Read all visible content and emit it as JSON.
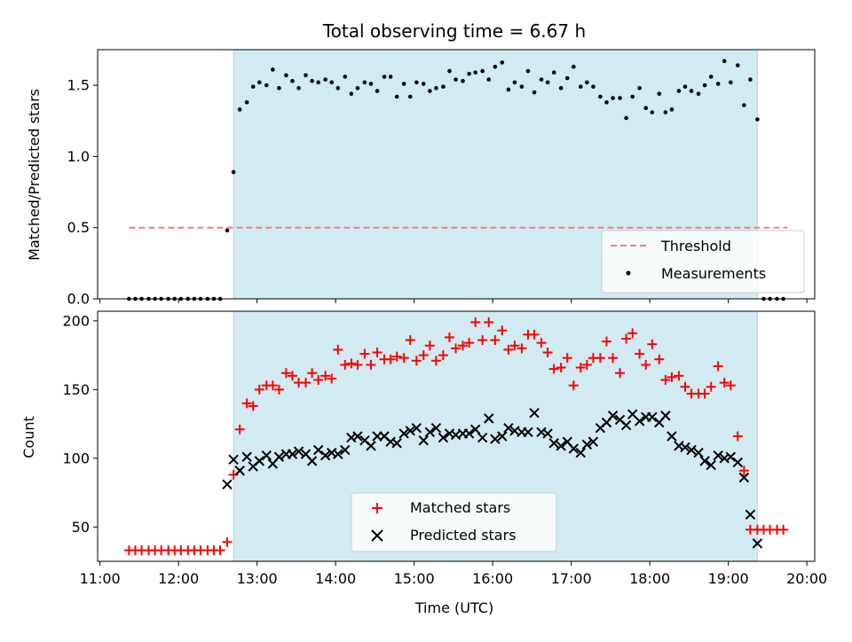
{
  "title": "Total observing time = 6.67 h",
  "colors": {
    "shade": "#add8e6",
    "threshold": "#f08080",
    "measurement": "#000000",
    "matched": "#ff0000",
    "predicted": "#000000"
  },
  "chart_data": [
    {
      "type": "scatter",
      "panel": "top",
      "ylabel": "Matched/Predicted stars",
      "xlim": [
        10.97,
        20.1
      ],
      "ylim": [
        0,
        1.75
      ],
      "yticks": [
        0.0,
        0.5,
        1.0,
        1.5
      ],
      "ytick_labels": [
        "0.0",
        "0.5",
        "1.0",
        "1.5"
      ],
      "shaded_span": [
        12.7,
        19.37
      ],
      "legend_position": "lower right",
      "legend": [
        "Threshold",
        "Measurements"
      ],
      "threshold": {
        "name": "Threshold",
        "y": 0.5,
        "x": [
          11.37,
          19.75
        ]
      },
      "series": [
        {
          "name": "Measurements",
          "x": [
            11.37,
            11.45,
            11.53,
            11.62,
            11.7,
            11.78,
            11.87,
            11.95,
            12.03,
            12.12,
            12.2,
            12.28,
            12.37,
            12.45,
            12.53,
            12.62,
            12.7,
            12.78,
            12.87,
            12.95,
            13.03,
            13.12,
            13.2,
            13.28,
            13.37,
            13.45,
            13.53,
            13.62,
            13.7,
            13.78,
            13.87,
            13.95,
            14.03,
            14.12,
            14.2,
            14.28,
            14.37,
            14.45,
            14.53,
            14.62,
            14.7,
            14.78,
            14.87,
            14.95,
            15.03,
            15.12,
            15.2,
            15.28,
            15.37,
            15.45,
            15.53,
            15.62,
            15.7,
            15.78,
            15.87,
            15.95,
            16.03,
            16.12,
            16.2,
            16.28,
            16.37,
            16.45,
            16.53,
            16.62,
            16.7,
            16.78,
            16.87,
            16.95,
            17.03,
            17.12,
            17.2,
            17.28,
            17.37,
            17.45,
            17.53,
            17.62,
            17.7,
            17.78,
            17.87,
            17.95,
            18.03,
            18.12,
            18.2,
            18.28,
            18.37,
            18.45,
            18.53,
            18.62,
            18.7,
            18.78,
            18.87,
            18.95,
            19.03,
            19.12,
            19.2,
            19.28,
            19.37,
            19.45,
            19.53,
            19.62,
            19.7
          ],
          "y": [
            0,
            0,
            0,
            0,
            0,
            0,
            0,
            0,
            0,
            0,
            0,
            0,
            0,
            0,
            0,
            0.48,
            0.89,
            1.33,
            1.38,
            1.49,
            1.52,
            1.5,
            1.61,
            1.48,
            1.57,
            1.53,
            1.48,
            1.57,
            1.53,
            1.52,
            1.54,
            1.52,
            1.48,
            1.56,
            1.44,
            1.48,
            1.52,
            1.51,
            1.46,
            1.56,
            1.56,
            1.42,
            1.51,
            1.42,
            1.52,
            1.51,
            1.46,
            1.48,
            1.49,
            1.6,
            1.54,
            1.53,
            1.58,
            1.59,
            1.6,
            1.54,
            1.63,
            1.66,
            1.47,
            1.52,
            1.49,
            1.6,
            1.45,
            1.54,
            1.52,
            1.59,
            1.48,
            1.55,
            1.63,
            1.49,
            1.52,
            1.49,
            1.42,
            1.38,
            1.41,
            1.41,
            1.27,
            1.42,
            1.48,
            1.34,
            1.31,
            1.44,
            1.31,
            1.33,
            1.46,
            1.49,
            1.46,
            1.44,
            1.5,
            1.56,
            1.51,
            1.67,
            1.52,
            1.64,
            1.36,
            1.54,
            1.26,
            0,
            0,
            0,
            0
          ]
        }
      ]
    },
    {
      "type": "scatter",
      "panel": "bottom",
      "xlabel": "Time (UTC)",
      "ylabel": "Count",
      "xlim": [
        10.97,
        20.1
      ],
      "ylim": [
        25,
        207
      ],
      "yticks": [
        50,
        100,
        150,
        200
      ],
      "ytick_labels": [
        "50",
        "100",
        "150",
        "200"
      ],
      "xticks": [
        11,
        12,
        13,
        14,
        15,
        16,
        17,
        18,
        19,
        20
      ],
      "xtick_labels": [
        "11:00",
        "12:00",
        "13:00",
        "14:00",
        "15:00",
        "16:00",
        "17:00",
        "18:00",
        "19:00",
        "20:00"
      ],
      "shaded_span": [
        12.7,
        19.37
      ],
      "legend_position": "lower center",
      "legend": [
        "Matched stars",
        "Predicted stars"
      ],
      "series": [
        {
          "name": "Matched stars",
          "marker": "+",
          "x": [
            11.37,
            11.45,
            11.53,
            11.62,
            11.7,
            11.78,
            11.87,
            11.95,
            12.03,
            12.12,
            12.2,
            12.28,
            12.37,
            12.45,
            12.53,
            12.62,
            12.7,
            12.78,
            12.87,
            12.95,
            13.03,
            13.12,
            13.2,
            13.28,
            13.37,
            13.45,
            13.53,
            13.62,
            13.7,
            13.78,
            13.87,
            13.95,
            14.03,
            14.12,
            14.2,
            14.28,
            14.37,
            14.45,
            14.53,
            14.62,
            14.7,
            14.78,
            14.87,
            14.95,
            15.03,
            15.12,
            15.2,
            15.28,
            15.37,
            15.45,
            15.53,
            15.62,
            15.7,
            15.78,
            15.87,
            15.95,
            16.03,
            16.12,
            16.2,
            16.28,
            16.37,
            16.45,
            16.53,
            16.62,
            16.7,
            16.78,
            16.87,
            16.95,
            17.03,
            17.12,
            17.2,
            17.28,
            17.37,
            17.45,
            17.53,
            17.62,
            17.7,
            17.78,
            17.87,
            17.95,
            18.03,
            18.12,
            18.2,
            18.28,
            18.37,
            18.45,
            18.53,
            18.62,
            18.7,
            18.78,
            18.87,
            18.95,
            19.03,
            19.12,
            19.2,
            19.28,
            19.37,
            19.45,
            19.53,
            19.62,
            19.7
          ],
          "y": [
            33,
            33,
            33,
            33,
            33,
            33,
            33,
            33,
            33,
            33,
            33,
            33,
            33,
            33,
            33,
            39,
            88,
            121,
            140,
            138,
            150,
            153,
            153,
            150,
            162,
            160,
            155,
            155,
            162,
            157,
            160,
            158,
            179,
            168,
            169,
            168,
            176,
            168,
            177,
            172,
            172,
            174,
            173,
            186,
            171,
            175,
            182,
            171,
            175,
            188,
            180,
            182,
            184,
            199,
            186,
            199,
            186,
            193,
            179,
            182,
            180,
            190,
            190,
            184,
            177,
            165,
            166,
            173,
            153,
            166,
            168,
            173,
            173,
            185,
            173,
            162,
            187,
            191,
            176,
            168,
            183,
            172,
            157,
            159,
            160,
            152,
            147,
            147,
            147,
            152,
            167,
            155,
            153,
            116,
            91,
            48,
            48,
            48,
            48,
            48,
            48
          ],
          "color": "#ff0000"
        },
        {
          "name": "Predicted stars",
          "marker": "x",
          "x": [
            12.62,
            12.7,
            12.78,
            12.87,
            12.95,
            13.03,
            13.12,
            13.2,
            13.28,
            13.37,
            13.45,
            13.53,
            13.62,
            13.7,
            13.78,
            13.87,
            13.95,
            14.03,
            14.12,
            14.2,
            14.28,
            14.37,
            14.45,
            14.53,
            14.62,
            14.7,
            14.78,
            14.87,
            14.95,
            15.03,
            15.12,
            15.2,
            15.28,
            15.37,
            15.45,
            15.53,
            15.62,
            15.7,
            15.78,
            15.87,
            15.95,
            16.03,
            16.12,
            16.2,
            16.28,
            16.37,
            16.45,
            16.53,
            16.62,
            16.7,
            16.78,
            16.87,
            16.95,
            17.03,
            17.12,
            17.2,
            17.28,
            17.37,
            17.45,
            17.53,
            17.62,
            17.7,
            17.78,
            17.87,
            17.95,
            18.03,
            18.12,
            18.2,
            18.28,
            18.37,
            18.45,
            18.53,
            18.62,
            18.7,
            18.78,
            18.87,
            18.95,
            19.03,
            19.12,
            19.2,
            19.28,
            19.37
          ],
          "y": [
            81,
            99,
            91,
            101,
            94,
            98,
            102,
            96,
            101,
            103,
            103,
            105,
            103,
            98,
            106,
            102,
            104,
            103,
            106,
            115,
            116,
            113,
            109,
            116,
            116,
            112,
            111,
            118,
            120,
            122,
            113,
            119,
            122,
            115,
            118,
            117,
            118,
            118,
            121,
            115,
            129,
            114,
            116,
            122,
            120,
            119,
            119,
            133,
            119,
            118,
            111,
            109,
            112,
            107,
            104,
            110,
            112,
            122,
            126,
            131,
            128,
            124,
            132,
            127,
            130,
            130,
            126,
            131,
            116,
            109,
            108,
            106,
            104,
            98,
            95,
            102,
            100,
            101,
            97,
            86,
            59,
            38
          ],
          "color": "#000000"
        }
      ]
    }
  ]
}
